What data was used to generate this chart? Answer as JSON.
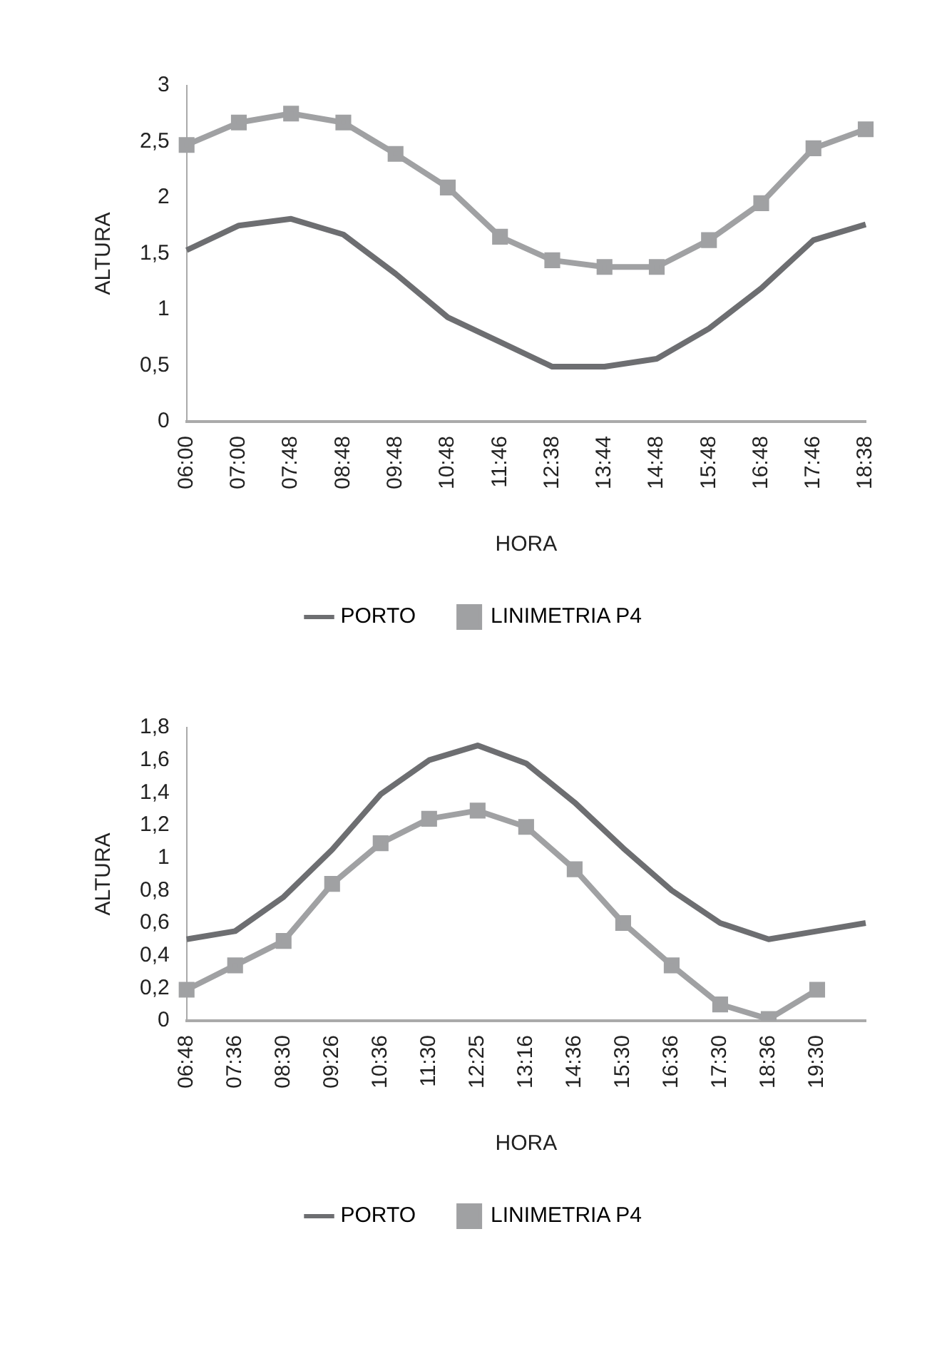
{
  "chart_data": [
    {
      "type": "line",
      "xlabel": "HORA",
      "ylabel": "ALTURA",
      "categories": [
        "06:00",
        "07:00",
        "07:48",
        "08:48",
        "09:48",
        "10:48",
        "11:46",
        "12:38",
        "13:44",
        "14:48",
        "15:48",
        "16:48",
        "17:46",
        "18:38"
      ],
      "series": [
        {
          "name": "PORTO",
          "color": "#6d6e71",
          "marker": "none",
          "values": [
            1.53,
            1.75,
            1.81,
            1.67,
            1.32,
            0.93,
            0.71,
            0.49,
            0.49,
            0.56,
            0.83,
            1.19,
            1.62,
            1.76
          ]
        },
        {
          "name": "LINIMETRIA P4",
          "color": "#a0a1a3",
          "marker": "square",
          "values": [
            2.47,
            2.67,
            2.75,
            2.67,
            2.39,
            2.09,
            1.65,
            1.44,
            1.38,
            1.38,
            1.62,
            1.95,
            2.44,
            2.61
          ]
        }
      ],
      "ylim": [
        0,
        3
      ],
      "yticks": [
        0,
        {
          "value": 0.5,
          "label": "0,5"
        },
        1,
        {
          "value": 1.5,
          "label": "1,5"
        },
        2,
        {
          "value": 2.5,
          "label": "2,5"
        },
        3
      ],
      "grid": false,
      "legend": "bottom"
    },
    {
      "type": "line",
      "xlabel": "HORA",
      "ylabel": "ALTURA",
      "categories": [
        "06:48",
        "07:36",
        "08:30",
        "09:26",
        "10:36",
        "11:30",
        "12:25",
        "13:16",
        "14:36",
        "15:30",
        "16:36",
        "17:30",
        "18:36",
        "19:30",
        null
      ],
      "series": [
        {
          "name": "PORTO",
          "color": "#6d6e71",
          "marker": "none",
          "values": [
            0.5,
            0.55,
            0.76,
            1.05,
            1.39,
            1.6,
            1.69,
            1.58,
            1.34,
            1.06,
            0.8,
            0.6,
            0.5,
            0.55,
            0.6
          ]
        },
        {
          "name": "LINIMETRIA P4",
          "color": "#a0a1a3",
          "marker": "square",
          "values": [
            0.19,
            0.34,
            0.49,
            0.84,
            1.09,
            1.24,
            1.29,
            1.19,
            0.93,
            0.6,
            0.34,
            0.1,
            0.01,
            0.19,
            null
          ]
        }
      ],
      "ylim": [
        0,
        1.8
      ],
      "yticks": [
        0,
        {
          "value": 0.2,
          "label": "0,2"
        },
        {
          "value": 0.4,
          "label": "0,4"
        },
        {
          "value": 0.6,
          "label": "0,6"
        },
        {
          "value": 0.8,
          "label": "0,8"
        },
        1,
        {
          "value": 1.2,
          "label": "1,2"
        },
        {
          "value": 1.4,
          "label": "1,4"
        },
        {
          "value": 1.6,
          "label": "1,6"
        },
        {
          "value": 1.8,
          "label": "1,8"
        }
      ],
      "grid": false,
      "legend": "bottom"
    }
  ]
}
